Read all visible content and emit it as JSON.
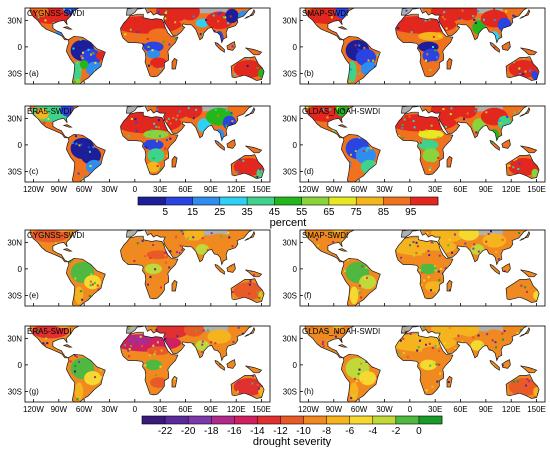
{
  "top_group": {
    "panels": [
      {
        "title": "CYGNSS-SWDI",
        "tag": "(a)"
      },
      {
        "title": "SMAP-SWDI",
        "tag": "(b)"
      },
      {
        "title": "ERA5-SWDI",
        "tag": "(c)"
      },
      {
        "title": "GLDAS_NOAH-SWDI",
        "tag": "(d)"
      }
    ],
    "colorbar": {
      "label": "percent",
      "ticks": [
        "5",
        "15",
        "25",
        "35",
        "45",
        "55",
        "65",
        "75",
        "85",
        "95"
      ],
      "colors": [
        "#1d1f9a",
        "#2b43e0",
        "#2f8df0",
        "#2fd0f3",
        "#3fd28a",
        "#22b81c",
        "#8ad43a",
        "#e8e822",
        "#f5b51c",
        "#f0721e",
        "#e2271f"
      ]
    }
  },
  "bottom_group": {
    "panels": [
      {
        "title": "CYGNSS-SWDI",
        "tag": "(e)"
      },
      {
        "title": "SMAP-SWDI",
        "tag": "(f)"
      },
      {
        "title": "ERA5-SWDI",
        "tag": "(g)"
      },
      {
        "title": "GLDAS_NOAH-SWDI",
        "tag": "(h)"
      }
    ],
    "colorbar": {
      "label": "drought severity",
      "ticks": [
        "-22",
        "-20",
        "-18",
        "-16",
        "-14",
        "-12",
        "-10",
        "-8",
        "-6",
        "-4",
        "-2",
        "0"
      ],
      "colors": [
        "#3a1a7a",
        "#5a2a9a",
        "#7a3aaa",
        "#b02a8a",
        "#d02060",
        "#e03030",
        "#e85a28",
        "#f08a20",
        "#f5b41e",
        "#f5d830",
        "#c0d838",
        "#50b840",
        "#1a9a2a"
      ]
    }
  },
  "axes": {
    "lat_ticks": [
      "30N",
      "0",
      "30S"
    ],
    "lon_ticks_left": [
      "120W",
      "90W",
      "60W",
      "30W"
    ],
    "lon_ticks_right": [
      "0",
      "30E",
      "60E",
      "90E",
      "120E",
      "150E"
    ]
  },
  "palette": {
    "land_gray": "#b0b0b0",
    "coast": "#1a1a1a"
  }
}
